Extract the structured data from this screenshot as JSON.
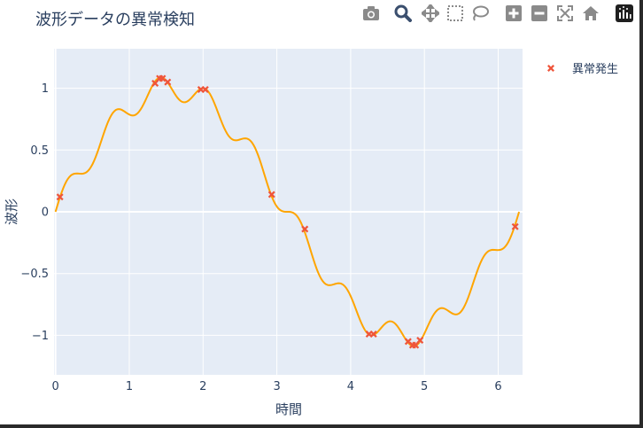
{
  "title": "波形データの異常検知",
  "modebar": {
    "buttons": [
      {
        "name": "camera-icon"
      },
      {
        "name": "zoom-icon"
      },
      {
        "name": "pan-icon"
      },
      {
        "name": "box-select-icon"
      },
      {
        "name": "lasso-select-icon"
      },
      {
        "name": "zoom-in-icon"
      },
      {
        "name": "zoom-out-icon"
      },
      {
        "name": "autoscale-icon"
      },
      {
        "name": "reset-axes-icon"
      },
      {
        "name": "plotly-logo-icon"
      }
    ],
    "icon_color": "#8a8a8a",
    "active_color": "#3b4f6e"
  },
  "chart_data": {
    "type": "line",
    "xlabel": "時間",
    "ylabel": "波形",
    "xlim": [
      -0.02,
      6.33
    ],
    "ylim": [
      -1.32,
      1.32
    ],
    "x_ticks": [
      0,
      1,
      2,
      3,
      4,
      5,
      6
    ],
    "y_ticks": [
      -1,
      -0.5,
      0,
      0.5,
      1
    ],
    "x_tick_labels": [
      "0",
      "1",
      "2",
      "3",
      "4",
      "5",
      "6"
    ],
    "y_tick_labels": [
      "−1",
      "−0.5",
      "0",
      "0.5",
      "1"
    ],
    "grid": true,
    "legend_position": "right",
    "plot_bg": "#e5ecf6",
    "line_color": "#ffa500",
    "anomaly_color": "#ef553b",
    "series": [
      {
        "formula": "sin(x) + 0.1*sin(10*x)",
        "x_start": 0,
        "x_end": 6.283,
        "samples": 300
      },
      {
        "name": "異常発生",
        "mode": "markers",
        "x": [
          0.06,
          1.35,
          1.41,
          1.45,
          1.52,
          1.97,
          2.03,
          2.93,
          3.38,
          4.25,
          4.31,
          4.78,
          4.84,
          4.88,
          4.94,
          6.23
        ],
        "y": [
          0.12,
          1.04,
          1.08,
          1.08,
          1.05,
          0.99,
          0.99,
          0.14,
          -0.14,
          -0.99,
          -0.99,
          -1.05,
          -1.08,
          -1.08,
          -1.04,
          -0.12
        ]
      }
    ]
  }
}
